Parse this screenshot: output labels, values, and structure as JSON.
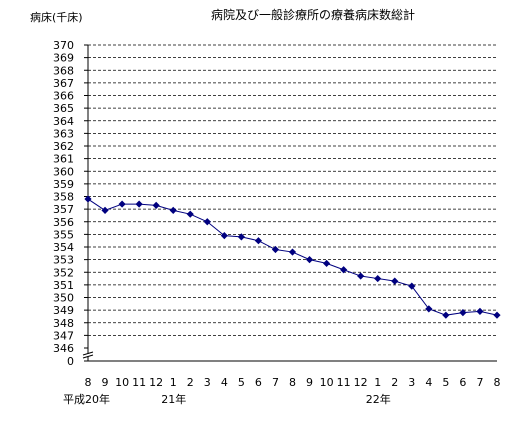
{
  "chart_data": {
    "type": "line",
    "title": "病院及び一般診療所の療養病床数総計",
    "ylabel": "病床(千床)",
    "xlabel": "",
    "ylim": [
      346,
      370
    ],
    "y_break_label": "0",
    "yticks": [
      346,
      347,
      348,
      349,
      350,
      351,
      352,
      353,
      354,
      355,
      356,
      357,
      358,
      359,
      360,
      361,
      362,
      363,
      364,
      365,
      366,
      367,
      368,
      369,
      370
    ],
    "categories": [
      "8",
      "9",
      "10",
      "11",
      "12",
      "1",
      "2",
      "3",
      "4",
      "5",
      "6",
      "7",
      "8",
      "9",
      "10",
      "11",
      "12",
      "1",
      "2",
      "3",
      "4",
      "5",
      "6",
      "7",
      "8"
    ],
    "year_labels": [
      {
        "index": 0,
        "text": "平成20年"
      },
      {
        "index": 5,
        "text": "21年"
      },
      {
        "index": 17,
        "text": "22年"
      }
    ],
    "series": [
      {
        "values": [
          357.8,
          356.9,
          357.4,
          357.4,
          357.3,
          356.9,
          356.6,
          356.0,
          354.9,
          354.8,
          354.5,
          353.8,
          353.6,
          353.0,
          352.7,
          352.2,
          351.7,
          351.5,
          351.3,
          350.9,
          349.1,
          348.6,
          348.8,
          348.9,
          348.6
        ],
        "color": "#00007f",
        "marker": "diamond"
      }
    ],
    "grid": "horizontal-dashed",
    "legend": "none"
  }
}
